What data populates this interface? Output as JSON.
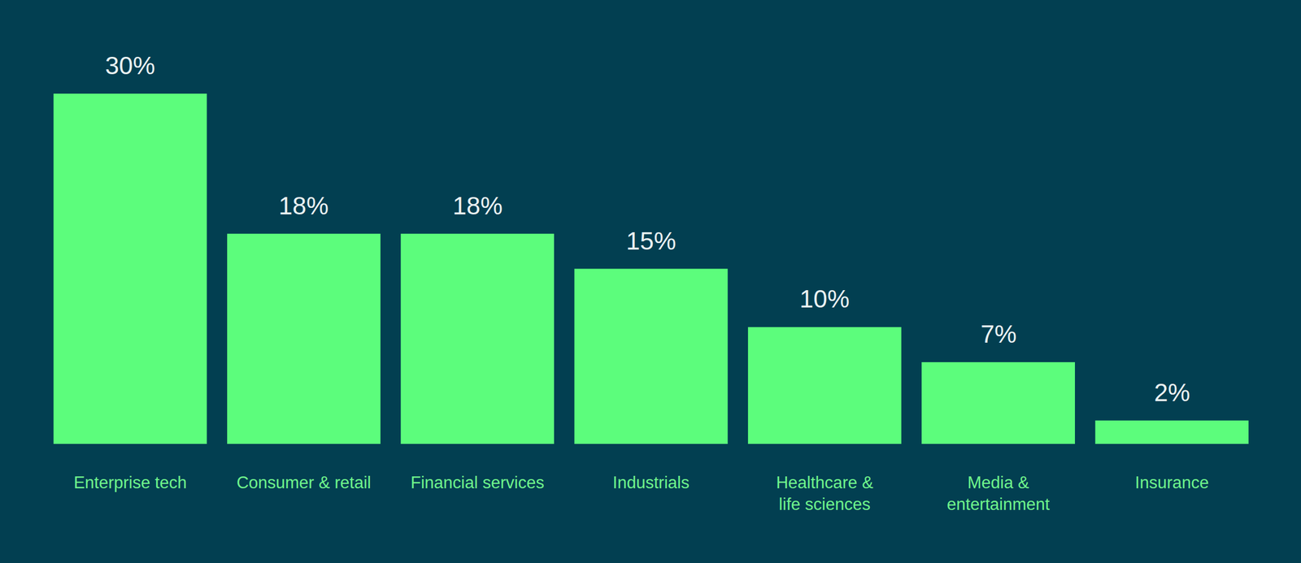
{
  "chart_data": {
    "type": "bar",
    "categories": [
      "Enterprise tech",
      "Consumer & retail",
      "Financial services",
      "Industrials",
      "Healthcare & life sciences",
      "Media & entertainment",
      "Insurance"
    ],
    "values": [
      30,
      18,
      18,
      15,
      10,
      7,
      2
    ],
    "value_labels": [
      "30%",
      "18%",
      "18%",
      "15%",
      "10%",
      "7%",
      "2%"
    ],
    "color": "#5cfd7c",
    "ylim": [
      0,
      30
    ],
    "data_labels": true,
    "tick_labels": "x",
    "grid": false
  }
}
